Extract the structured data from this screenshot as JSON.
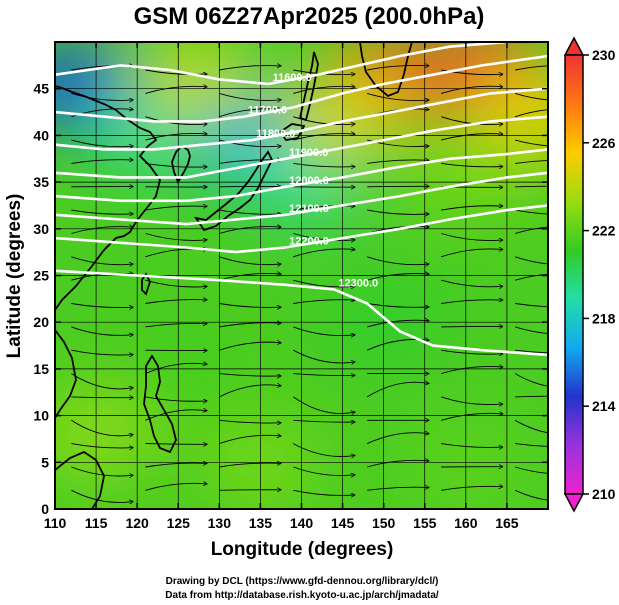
{
  "chart_data": {
    "type": "heatmap",
    "title": "GSM 06Z27Apr2025 (200.0hPa)",
    "xlabel": "Longitude (degrees)",
    "ylabel": "Latitude  (degrees)",
    "xlim": [
      110,
      170
    ],
    "ylim": [
      0,
      50
    ],
    "x_ticks": [
      110,
      115,
      120,
      125,
      130,
      135,
      140,
      145,
      150,
      155,
      160,
      165
    ],
    "y_ticks": [
      0,
      5,
      10,
      15,
      20,
      25,
      30,
      35,
      40,
      45
    ],
    "grid": true,
    "variable": "temperature",
    "colorbar": {
      "min": 210,
      "max": 230,
      "ticks": [
        210,
        214,
        218,
        222,
        226,
        230
      ],
      "colors": [
        "#ee22cc",
        "#9933dd",
        "#2233cc",
        "#11aaee",
        "#22ddaa",
        "#33cc22",
        "#99dd11",
        "#ffcc00",
        "#ff7711",
        "#ee3333"
      ]
    },
    "field_blobs": [
      {
        "lon": 113,
        "lat": 45,
        "value": 215
      },
      {
        "lon": 133,
        "lat": 40,
        "value": 216.5
      },
      {
        "lon": 140,
        "lat": 36,
        "value": 219
      },
      {
        "lon": 122,
        "lat": 41,
        "value": 219
      },
      {
        "lon": 127,
        "lat": 46,
        "value": 224
      },
      {
        "lon": 150,
        "lat": 46,
        "value": 228.5
      },
      {
        "lon": 162,
        "lat": 47,
        "value": 229
      },
      {
        "lon": 168,
        "lat": 42,
        "value": 225
      },
      {
        "lon": 145,
        "lat": 42,
        "value": 224.5
      },
      {
        "lon": 160,
        "lat": 36,
        "value": 222.5
      },
      {
        "lon": 150,
        "lat": 20,
        "value": 221
      },
      {
        "lon": 125,
        "lat": 15,
        "value": 221.5
      },
      {
        "lon": 135,
        "lat": 5,
        "value": 222.5
      },
      {
        "lon": 160,
        "lat": 5,
        "value": 222
      },
      {
        "lon": 115,
        "lat": 8,
        "value": 223
      }
    ],
    "contours": [
      {
        "label": "11600.0",
        "points": [
          [
            110,
            46.5
          ],
          [
            118,
            47.5
          ],
          [
            124,
            47
          ],
          [
            130,
            46
          ],
          [
            136,
            45.5
          ],
          [
            142,
            46.5
          ],
          [
            147,
            47.5
          ],
          [
            152,
            48.5
          ],
          [
            158,
            49.5
          ],
          [
            165,
            50
          ]
        ]
      },
      {
        "label": "11700.0",
        "points": [
          [
            110,
            42.5
          ],
          [
            116,
            42
          ],
          [
            122,
            41.5
          ],
          [
            128,
            41.5
          ],
          [
            133,
            42
          ],
          [
            139,
            43
          ],
          [
            145,
            44.5
          ],
          [
            150,
            45.5
          ],
          [
            156,
            46.5
          ],
          [
            162,
            47.5
          ],
          [
            170,
            48.5
          ]
        ]
      },
      {
        "label": "11800.0",
        "points": [
          [
            110,
            39
          ],
          [
            116,
            38.5
          ],
          [
            122,
            38.5
          ],
          [
            128,
            39
          ],
          [
            134,
            39.5
          ],
          [
            140,
            40.5
          ],
          [
            145,
            41.5
          ],
          [
            151,
            42.5
          ],
          [
            157,
            43.5
          ],
          [
            163,
            44.5
          ],
          [
            170,
            45
          ]
        ]
      },
      {
        "label": "11900.0",
        "points": [
          [
            110,
            36
          ],
          [
            118,
            35.5
          ],
          [
            126,
            35.5
          ],
          [
            132,
            36.5
          ],
          [
            138,
            37.5
          ],
          [
            144,
            38.5
          ],
          [
            150,
            39.5
          ],
          [
            156,
            40.5
          ],
          [
            163,
            41.5
          ],
          [
            170,
            42
          ]
        ]
      },
      {
        "label": "12000.0",
        "points": [
          [
            110,
            33.5
          ],
          [
            118,
            33
          ],
          [
            126,
            33
          ],
          [
            132,
            33.5
          ],
          [
            138,
            34.5
          ],
          [
            145,
            35.5
          ],
          [
            151,
            36.5
          ],
          [
            158,
            37.5
          ],
          [
            165,
            38
          ],
          [
            170,
            38.5
          ]
        ]
      },
      {
        "label": "12100.0",
        "points": [
          [
            110,
            31.5
          ],
          [
            118,
            31
          ],
          [
            126,
            30.5
          ],
          [
            132,
            31
          ],
          [
            138,
            31.5
          ],
          [
            145,
            32.5
          ],
          [
            152,
            33.5
          ],
          [
            158,
            34.5
          ],
          [
            165,
            35.5
          ],
          [
            170,
            36
          ]
        ]
      },
      {
        "label": "12200.0",
        "points": [
          [
            110,
            29
          ],
          [
            118,
            28.5
          ],
          [
            126,
            28
          ],
          [
            132,
            27.5
          ],
          [
            138,
            28
          ],
          [
            145,
            29
          ],
          [
            152,
            30
          ],
          [
            158,
            31
          ],
          [
            165,
            32
          ],
          [
            170,
            32.5
          ]
        ]
      },
      {
        "label": "12300.0",
        "points": [
          [
            110,
            25.5
          ],
          [
            120,
            25
          ],
          [
            130,
            24.5
          ],
          [
            138,
            24
          ],
          [
            144,
            23.5
          ],
          [
            148,
            22
          ],
          [
            152,
            19
          ],
          [
            156,
            17.5
          ],
          [
            162,
            17
          ],
          [
            170,
            16.5
          ]
        ]
      }
    ],
    "streamline_direction": "westerly",
    "credits": [
      "Drawing by DCL (https://www.gfd-dennou.org/library/dcl/)",
      "Data from http://database.rish.kyoto-u.ac.jp/arch/jmadata/"
    ]
  }
}
